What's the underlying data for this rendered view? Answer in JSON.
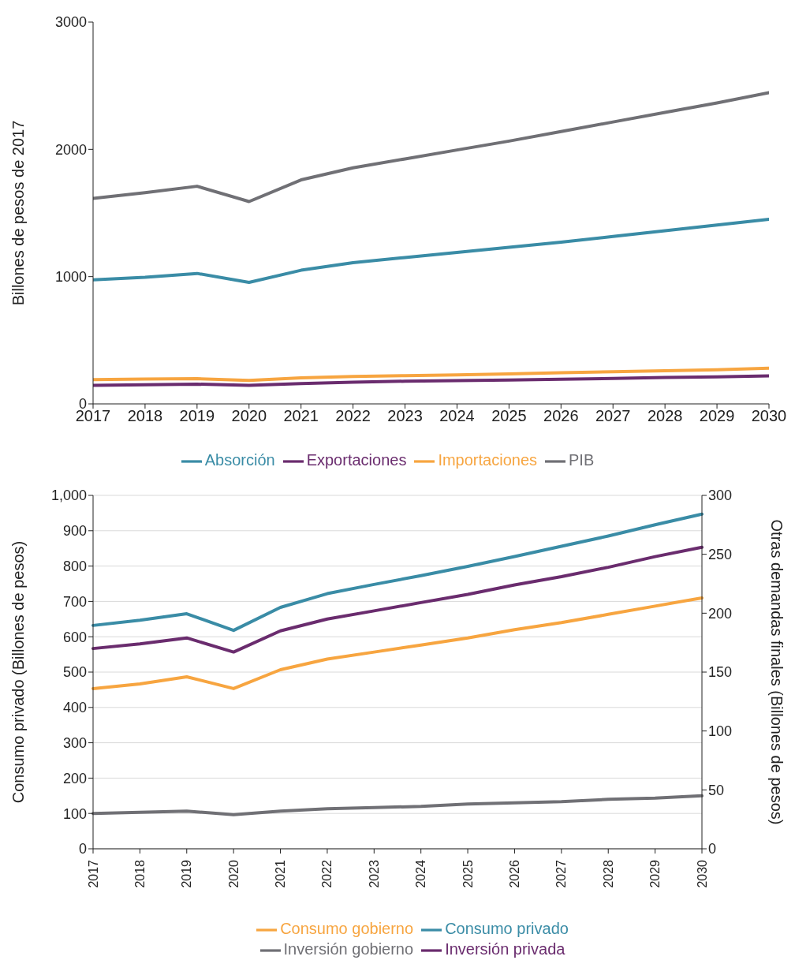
{
  "chart_data": [
    {
      "type": "line",
      "x": [
        2017,
        2018,
        2019,
        2020,
        2021,
        2022,
        2023,
        2024,
        2025,
        2026,
        2027,
        2028,
        2029,
        2030
      ],
      "xlim": [
        2017,
        2030
      ],
      "xticks": [
        2017,
        2018,
        2019,
        2020,
        2021,
        2022,
        2023,
        2024,
        2025,
        2026,
        2027,
        2028,
        2029,
        2030
      ],
      "ylim": [
        0,
        3000
      ],
      "yticks": [
        0,
        1000,
        2000,
        3000
      ],
      "ylabel": "Billones de pesos de 2017",
      "legend": "bottom",
      "grid": false,
      "marker": "none",
      "series": [
        {
          "name": "Absorción",
          "color": "#3a8ca6",
          "values": [
            975,
            995,
            1025,
            955,
            1050,
            1110,
            1150,
            1190,
            1230,
            1270,
            1315,
            1360,
            1405,
            1450
          ]
        },
        {
          "name": "Exportaciones",
          "color": "#6a2c6e",
          "values": [
            145,
            150,
            155,
            145,
            160,
            170,
            178,
            183,
            188,
            193,
            200,
            207,
            213,
            220
          ]
        },
        {
          "name": "Importaciones",
          "color": "#f7a540",
          "values": [
            190,
            195,
            198,
            185,
            205,
            215,
            222,
            228,
            235,
            245,
            252,
            260,
            268,
            280
          ]
        },
        {
          "name": "PIB",
          "color": "#707075",
          "values": [
            1615,
            1660,
            1710,
            1590,
            1760,
            1855,
            1925,
            1995,
            2065,
            2140,
            2215,
            2290,
            2365,
            2445
          ]
        }
      ]
    },
    {
      "type": "line",
      "categories": [
        "2017",
        "2018",
        "2019",
        "2020",
        "2021",
        "2022",
        "2023",
        "2024",
        "2025",
        "2026",
        "2027",
        "2028",
        "2029",
        "2030"
      ],
      "ylim": [
        0,
        1000
      ],
      "yticks": [
        0,
        100,
        200,
        300,
        400,
        500,
        600,
        700,
        800,
        900,
        {
          "value": 1000,
          "label": "1,000"
        }
      ],
      "y2lim": [
        0,
        300
      ],
      "y2ticks": [
        0,
        50,
        100,
        150,
        200,
        250,
        300
      ],
      "ylabel": "Consumo privado (Billones de pesos)",
      "y2label": "Otras demandas finales (Billones de pesos)",
      "legend": "bottom",
      "grid": "y",
      "marker": "none",
      "series": [
        {
          "name": "Consumo privado",
          "color": "#3a8ca6",
          "values": [
            632,
            647,
            665,
            618,
            683,
            722,
            748,
            773,
            799,
            827,
            856,
            885,
            917,
            947
          ]
        },
        {
          "name": "Consumo gobierno",
          "color": "#f7a540",
          "axis": "y2",
          "values": [
            136,
            140,
            146,
            136,
            152,
            161,
            167,
            173,
            179,
            186,
            192,
            199,
            206,
            213
          ]
        },
        {
          "name": "Inversión privada",
          "color": "#6a2c6e",
          "axis": "y2",
          "values": [
            170,
            174,
            179,
            167,
            185,
            195,
            202,
            209,
            216,
            224,
            231,
            239,
            248,
            256
          ]
        },
        {
          "name": "Inversión gobierno",
          "color": "#707075",
          "axis": "y2",
          "values": [
            30,
            31,
            32,
            29,
            32,
            34,
            35,
            36,
            38,
            39,
            40,
            42,
            43,
            45
          ]
        }
      ]
    }
  ]
}
